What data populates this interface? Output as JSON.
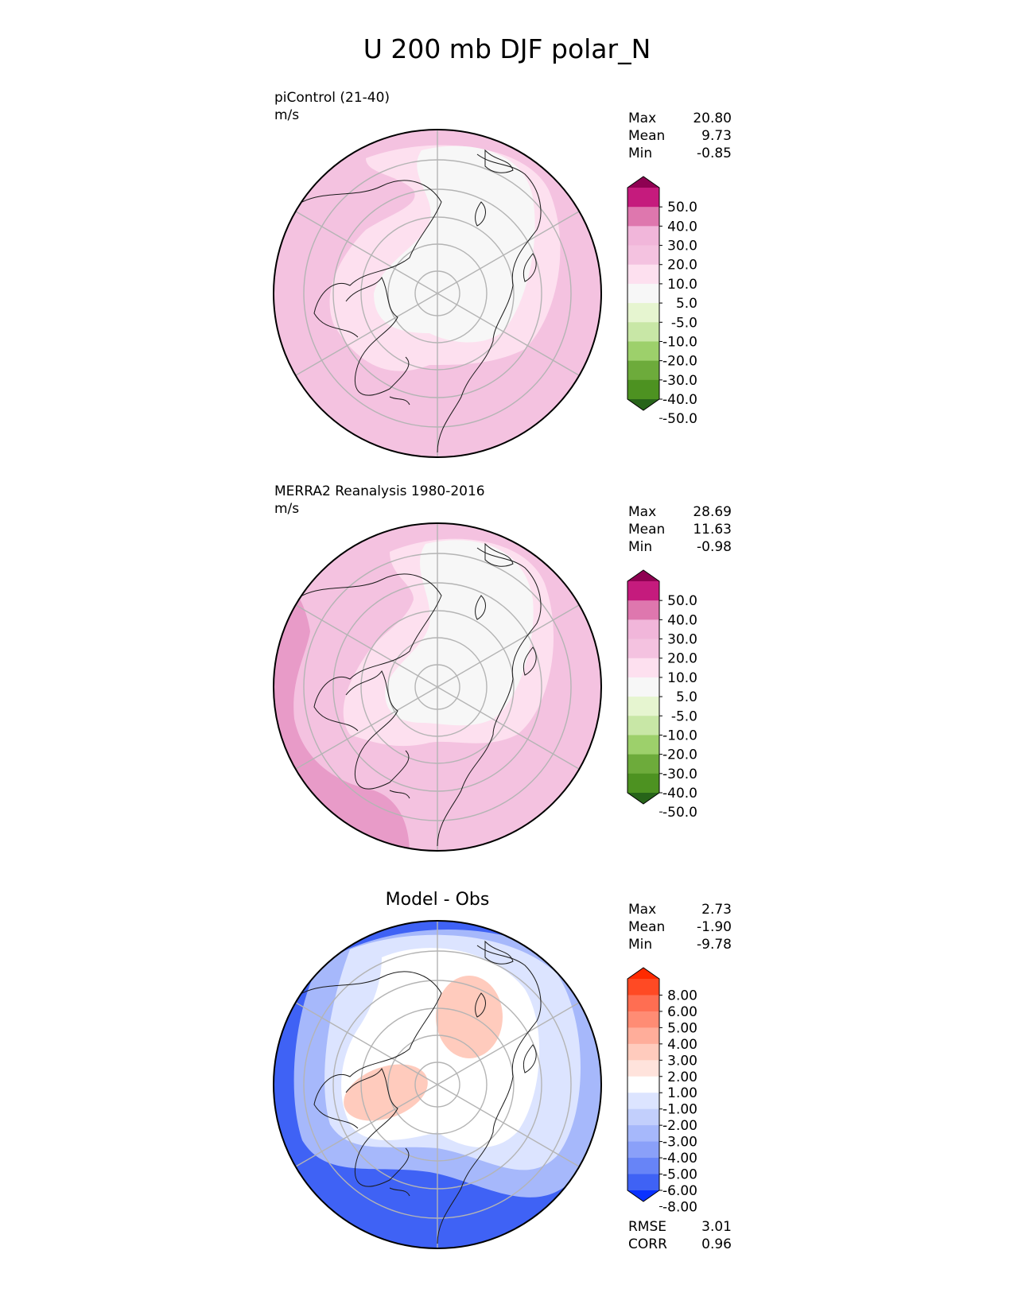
{
  "figure": {
    "title": "U 200 mb DJF polar_N"
  },
  "panels": [
    {
      "id": "test",
      "label": "piControl (21-40)",
      "units": "m/s",
      "center_title": "",
      "stats": [
        {
          "name": "Max",
          "value": "20.80"
        },
        {
          "name": "Mean",
          "value": "9.73"
        },
        {
          "name": "Min",
          "value": "-0.85"
        }
      ],
      "colorbar": {
        "ticks": [
          "50.0",
          "40.0",
          "30.0",
          "20.0",
          "10.0",
          "5.0",
          "-5.0",
          "-10.0",
          "-20.0",
          "-30.0",
          "-40.0",
          "-50.0"
        ],
        "colors": [
          "#8e0152",
          "#c51b7d",
          "#de77ae",
          "#f1b6da",
          "#f4c2e0",
          "#fde0ef",
          "#f7f7f7",
          "#e6f5d0",
          "#c8e7a6",
          "#9dd06b",
          "#6dab3b",
          "#4d9221",
          "#276419"
        ],
        "extend": "both"
      },
      "regions": [
        {
          "name": "outer-ring",
          "value_range": "10 to 20 m/s",
          "color": "#f4c2e0"
        },
        {
          "name": "inner-band",
          "value_range": "5 to 10 m/s",
          "color": "#fde0ef"
        },
        {
          "name": "polar-core",
          "value_range": "-5 to 5 m/s",
          "color": "#f7f7f7"
        }
      ]
    },
    {
      "id": "reference",
      "label": "MERRA2 Reanalysis 1980-2016",
      "units": "m/s",
      "center_title": "",
      "stats": [
        {
          "name": "Max",
          "value": "28.69"
        },
        {
          "name": "Mean",
          "value": "11.63"
        },
        {
          "name": "Min",
          "value": "-0.98"
        }
      ],
      "colorbar": {
        "ticks": [
          "50.0",
          "40.0",
          "30.0",
          "20.0",
          "10.0",
          "5.0",
          "-5.0",
          "-10.0",
          "-20.0",
          "-30.0",
          "-40.0",
          "-50.0"
        ],
        "colors": [
          "#8e0152",
          "#c51b7d",
          "#de77ae",
          "#f1b6da",
          "#f4c2e0",
          "#fde0ef",
          "#f7f7f7",
          "#e6f5d0",
          "#c8e7a6",
          "#9dd06b",
          "#6dab3b",
          "#4d9221",
          "#276419"
        ],
        "extend": "both"
      },
      "regions": [
        {
          "name": "jet-core",
          "value_range": "20 to 30 m/s",
          "color": "#e89bc8"
        },
        {
          "name": "outer-ring",
          "value_range": "10 to 20 m/s",
          "color": "#f4c2e0"
        },
        {
          "name": "inner-band",
          "value_range": "5 to 10 m/s",
          "color": "#fde0ef"
        },
        {
          "name": "polar-core",
          "value_range": "-5 to 5 m/s",
          "color": "#f7f7f7"
        }
      ]
    },
    {
      "id": "diff",
      "label": "",
      "units": "",
      "center_title": "Model - Obs",
      "stats": [
        {
          "name": "Max",
          "value": "2.73"
        },
        {
          "name": "Mean",
          "value": "-1.90"
        },
        {
          "name": "Min",
          "value": "-9.78"
        }
      ],
      "metrics": [
        {
          "name": "RMSE",
          "value": "3.01"
        },
        {
          "name": "CORR",
          "value": "0.96"
        }
      ],
      "colorbar": {
        "ticks": [
          "8.00",
          "6.00",
          "5.00",
          "4.00",
          "3.00",
          "2.00",
          "1.00",
          "-1.00",
          "-2.00",
          "-3.00",
          "-4.00",
          "-5.00",
          "-6.00",
          "-8.00"
        ],
        "colors": [
          "#ff2a00",
          "#ff4a24",
          "#ff6e52",
          "#ff8c74",
          "#ffad9a",
          "#ffcbbd",
          "#ffe3dc",
          "#ffffff",
          "#dce4ff",
          "#c2cffc",
          "#a6b8fb",
          "#8aa0f9",
          "#6784f7",
          "#3f62f5",
          "#0a32ff"
        ],
        "extend": "both"
      },
      "regions": [
        {
          "name": "outer-negative",
          "value_range": "-8 to -4 m/s",
          "color": "#3f62f5"
        },
        {
          "name": "mid-negative",
          "value_range": "-3 to -2 m/s",
          "color": "#a6b8fb"
        },
        {
          "name": "weak-negative",
          "value_range": "-2 to -1 m/s",
          "color": "#dce4ff"
        },
        {
          "name": "near-zero",
          "value_range": "-1 to 1 m/s",
          "color": "#ffffff"
        },
        {
          "name": "positive-patches",
          "value_range": "1 to 3 m/s",
          "color": "#ffcbbd"
        }
      ]
    }
  ]
}
